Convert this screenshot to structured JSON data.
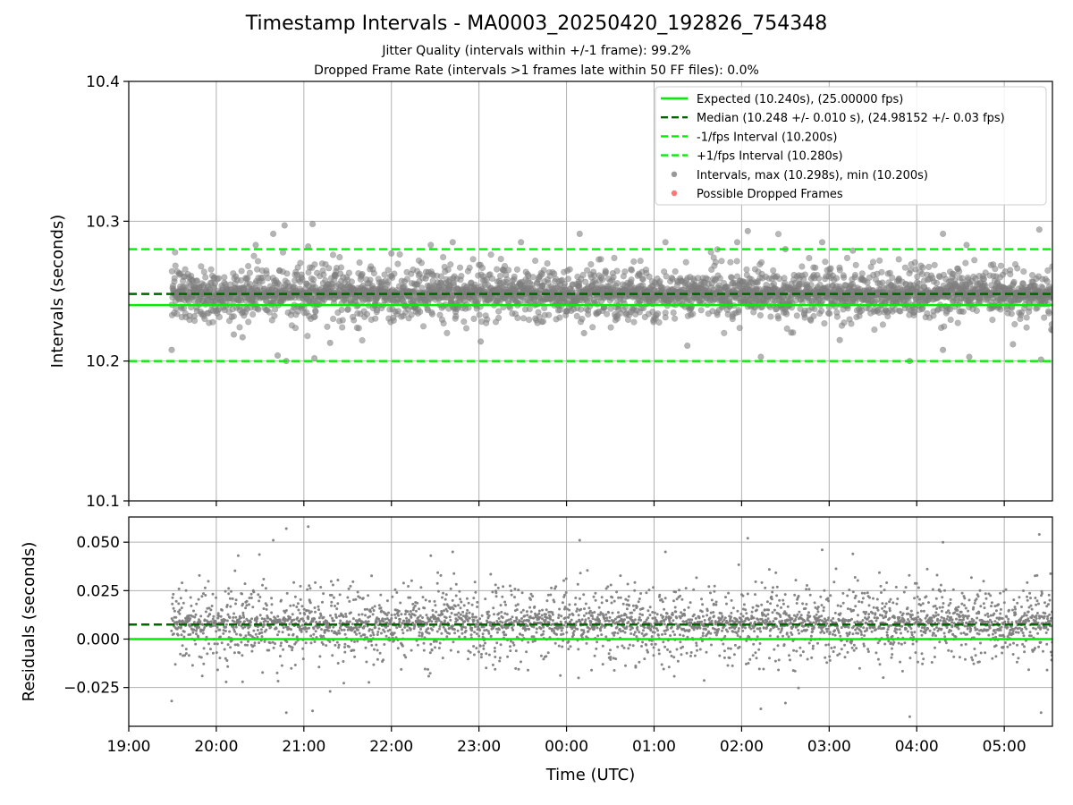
{
  "title": "Timestamp Intervals - MA0003_20250420_192826_754348",
  "subtitle_line1": "Jitter Quality (intervals within +/-1 frame): 99.2%",
  "subtitle_line2": "Dropped Frame Rate (intervals >1 frames late within 50 FF files): 0.0%",
  "colors": {
    "expected": "#00ee00",
    "median": "#006400",
    "interval_band": "#00ee00",
    "points": "#808080",
    "dropped": "#ff5555",
    "grid": "#b0b0b0"
  },
  "chart_data": [
    {
      "type": "scatter",
      "ylabel": "Intervals (seconds)",
      "xlabel": "",
      "x_unit": "hours since 19:00 UTC (2025-04-20)",
      "xlim": [
        0,
        10.55
      ],
      "ylim": [
        10.1,
        10.4
      ],
      "yticks": [
        10.1,
        10.2,
        10.3,
        10.4
      ],
      "ytick_labels": [
        "10.1",
        "10.2",
        "10.3",
        "10.4"
      ],
      "grid": true,
      "legend_location": "top-right",
      "legend": [
        {
          "label": "Expected (10.240s), (25.00000 fps)",
          "style": "solid-line",
          "color": "#00ee00"
        },
        {
          "label": "Median (10.248 +/- 0.010 s), (24.98152 +/- 0.03 fps)",
          "style": "dashed-line",
          "color": "#006400"
        },
        {
          "label": "-1/fps Interval (10.200s)",
          "style": "dashed-line",
          "color": "#00ee00"
        },
        {
          "label": "+1/fps Interval (10.280s)",
          "style": "dashed-line",
          "color": "#00ee00"
        },
        {
          "label": "Intervals, max (10.298s), min (10.200s)",
          "style": "marker",
          "color": "#808080"
        },
        {
          "label": "Possible Dropped Frames",
          "style": "marker",
          "color": "#ff5555"
        }
      ],
      "reference_lines": {
        "expected": 10.24,
        "median": 10.248,
        "minus_one_fps": 10.2,
        "plus_one_fps": 10.28
      },
      "series": [
        {
          "name": "Intervals, max (10.298s), min (10.200s)",
          "x_start": 0.49,
          "x_end": 10.55,
          "approx_count": 3500,
          "center": 10.248,
          "spread_std": 0.01,
          "max": 10.298,
          "min": 10.2,
          "points": [
            [
              0.49,
              10.208
            ],
            [
              0.75,
              10.232
            ],
            [
              1.2,
              10.219
            ],
            [
              1.3,
              10.217
            ],
            [
              1.45,
              10.283
            ],
            [
              1.65,
              10.291
            ],
            [
              1.7,
              10.204
            ],
            [
              1.78,
              10.297
            ],
            [
              1.8,
              10.2
            ],
            [
              2.05,
              10.282
            ],
            [
              2.1,
              10.298
            ],
            [
              2.12,
              10.202
            ],
            [
              2.3,
              10.213
            ],
            [
              3.0,
              10.277
            ],
            [
              3.45,
              10.283
            ],
            [
              3.7,
              10.285
            ],
            [
              4.02,
              10.214
            ],
            [
              4.48,
              10.285
            ],
            [
              5.15,
              10.291
            ],
            [
              5.2,
              10.22
            ],
            [
              6.13,
              10.285
            ],
            [
              6.38,
              10.211
            ],
            [
              6.95,
              10.285
            ],
            [
              7.07,
              10.293
            ],
            [
              7.22,
              10.203
            ],
            [
              7.5,
              10.28
            ],
            [
              7.92,
              10.285
            ],
            [
              8.12,
              10.215
            ],
            [
              8.27,
              10.279
            ],
            [
              8.92,
              10.2
            ],
            [
              9.3,
              10.291
            ],
            [
              9.3,
              10.208
            ],
            [
              9.57,
              10.283
            ],
            [
              9.6,
              10.203
            ],
            [
              10.1,
              10.212
            ],
            [
              10.4,
              10.294
            ],
            [
              10.42,
              10.201
            ],
            [
              10.55,
              10.222
            ]
          ]
        },
        {
          "name": "Possible Dropped Frames",
          "points": []
        }
      ]
    },
    {
      "type": "scatter",
      "xlabel": "Time (UTC)",
      "ylabel": "Residuals (seconds)",
      "x_unit": "hours since 19:00 UTC (2025-04-20)",
      "xlim": [
        0,
        10.55
      ],
      "ylim": [
        -0.045,
        0.063
      ],
      "yticks": [
        -0.025,
        0.0,
        0.025,
        0.05
      ],
      "ytick_labels": [
        "−0.025",
        "0.000",
        "0.025",
        "0.050"
      ],
      "xticks": [
        0,
        1,
        2,
        3,
        4,
        5,
        6,
        7,
        8,
        9,
        10
      ],
      "xtick_labels": [
        "19:00",
        "20:00",
        "21:00",
        "22:00",
        "23:00",
        "00:00",
        "01:00",
        "02:00",
        "03:00",
        "04:00",
        "05:00"
      ],
      "grid": true,
      "reference_lines": {
        "zero": 0.0,
        "median_residual": 0.0075
      },
      "series": [
        {
          "name": "Residuals",
          "x_start": 0.49,
          "x_end": 10.55,
          "approx_count": 3500,
          "center": 0.008,
          "spread_std": 0.01,
          "points": [
            [
              0.49,
              -0.032
            ],
            [
              1.25,
              0.043
            ],
            [
              1.3,
              -0.022
            ],
            [
              1.65,
              0.051
            ],
            [
              1.8,
              -0.038
            ],
            [
              1.8,
              0.057
            ],
            [
              2.05,
              0.058
            ],
            [
              2.1,
              -0.037
            ],
            [
              2.3,
              -0.027
            ],
            [
              3.45,
              0.043
            ],
            [
              3.7,
              0.045
            ],
            [
              5.15,
              0.051
            ],
            [
              6.13,
              0.045
            ],
            [
              7.07,
              0.052
            ],
            [
              7.22,
              -0.036
            ],
            [
              7.5,
              -0.033
            ],
            [
              7.92,
              0.046
            ],
            [
              8.27,
              0.044
            ],
            [
              8.92,
              -0.04
            ],
            [
              9.3,
              0.05
            ],
            [
              10.4,
              0.054
            ],
            [
              10.42,
              -0.038
            ]
          ]
        }
      ]
    }
  ]
}
